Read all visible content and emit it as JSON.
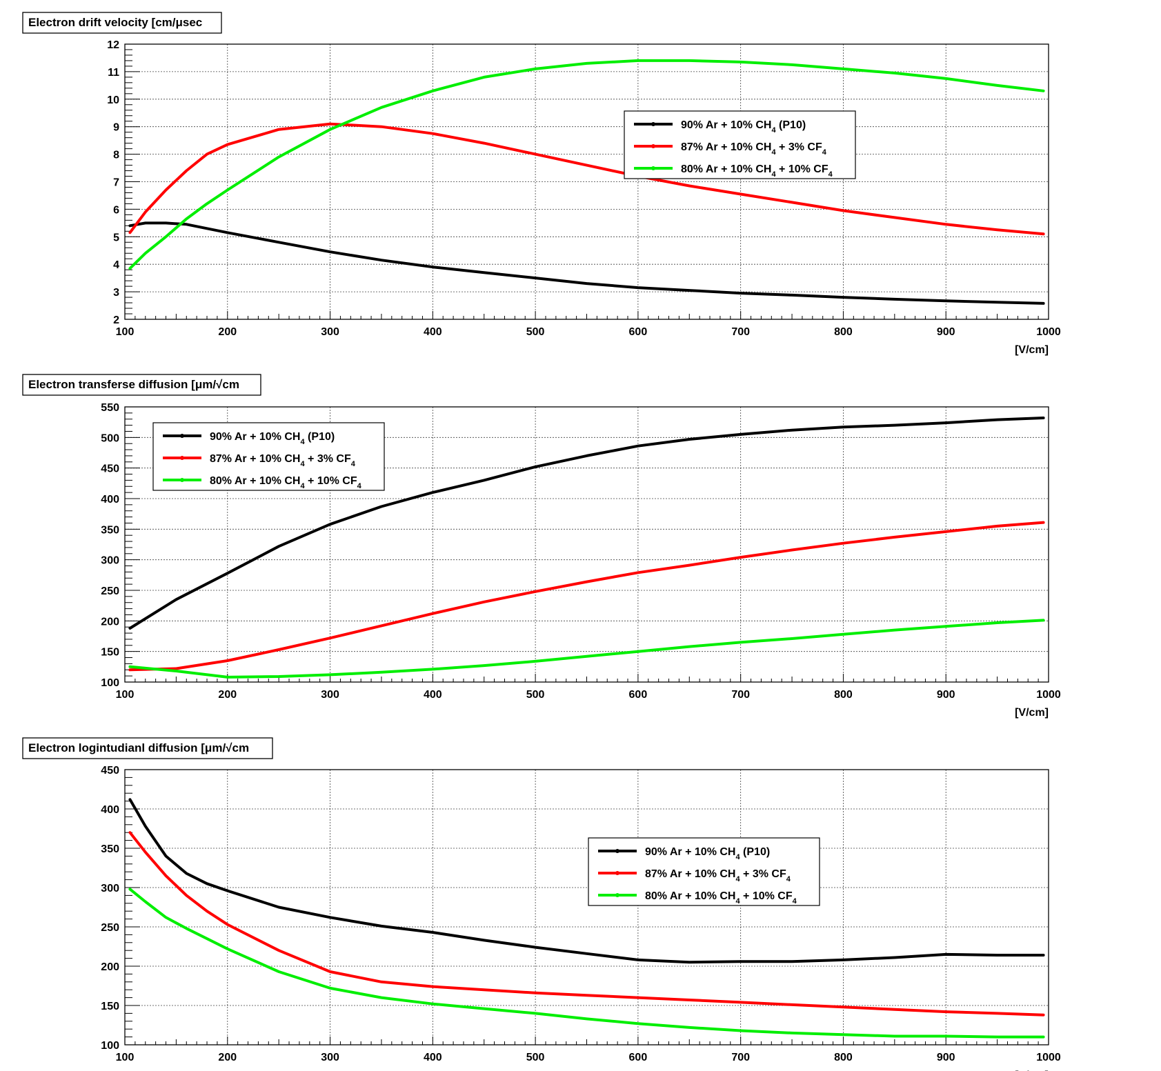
{
  "chart_data": [
    {
      "type": "line",
      "title": "Electron drift velocity [cm/μsec",
      "xlabel": "[V/cm]",
      "ylabel": "",
      "xlim": [
        100,
        1000
      ],
      "ylim": [
        2,
        12
      ],
      "x_ticks": [
        100,
        200,
        300,
        400,
        500,
        600,
        700,
        800,
        900,
        1000
      ],
      "y_ticks": [
        2,
        3,
        4,
        5,
        6,
        7,
        8,
        9,
        10,
        11,
        12
      ],
      "y_minor_step": 0.2,
      "grid": true,
      "legend_position": "upper-right-center",
      "x": [
        105,
        120,
        140,
        160,
        180,
        200,
        250,
        300,
        350,
        400,
        450,
        500,
        550,
        600,
        650,
        700,
        750,
        800,
        850,
        900,
        950,
        995
      ],
      "series": [
        {
          "name": "90% Ar + 10% CH4 (P10)",
          "label_main": "90% Ar + 10% CH",
          "label_sub": "4",
          "label_tail": " (P10)",
          "color": "#000000",
          "values": [
            5.4,
            5.5,
            5.5,
            5.45,
            5.3,
            5.15,
            4.8,
            4.45,
            4.15,
            3.9,
            3.7,
            3.5,
            3.3,
            3.15,
            3.05,
            2.95,
            2.88,
            2.8,
            2.73,
            2.67,
            2.62,
            2.58
          ]
        },
        {
          "name": "87% Ar + 10% CH4 + 3% CF4",
          "label_main": "87% Ar + 10% CH",
          "label_sub": "4",
          "label_tail": " + 3% CF",
          "label_sub2": "4",
          "color": "#ff0000",
          "values": [
            5.15,
            5.9,
            6.7,
            7.4,
            8.0,
            8.35,
            8.9,
            9.1,
            9.0,
            8.75,
            8.4,
            8.0,
            7.6,
            7.2,
            6.85,
            6.55,
            6.25,
            5.95,
            5.7,
            5.45,
            5.25,
            5.1
          ]
        },
        {
          "name": "80% Ar + 10% CH4 + 10% CF4",
          "label_main": "80% Ar + 10% CH",
          "label_sub": "4",
          "label_tail": " + 10% CF",
          "label_sub2": "4",
          "color": "#00ee00",
          "values": [
            3.85,
            4.4,
            5.0,
            5.65,
            6.2,
            6.7,
            7.9,
            8.9,
            9.7,
            10.3,
            10.8,
            11.1,
            11.3,
            11.4,
            11.4,
            11.35,
            11.25,
            11.1,
            10.95,
            10.75,
            10.5,
            10.3
          ]
        }
      ]
    },
    {
      "type": "line",
      "title": "Electron transferse diffusion [μm/√cm",
      "xlabel": "[V/cm]",
      "ylabel": "",
      "xlim": [
        100,
        1000
      ],
      "ylim": [
        100,
        550
      ],
      "x_ticks": [
        100,
        200,
        300,
        400,
        500,
        600,
        700,
        800,
        900,
        1000
      ],
      "y_ticks": [
        100,
        150,
        200,
        250,
        300,
        350,
        400,
        450,
        500,
        550
      ],
      "y_minor_step": 10,
      "grid": true,
      "legend_position": "upper-left",
      "x": [
        105,
        150,
        200,
        250,
        300,
        350,
        400,
        450,
        500,
        550,
        600,
        650,
        700,
        750,
        800,
        850,
        900,
        950,
        995
      ],
      "series": [
        {
          "name": "90% Ar + 10% CH4 (P10)",
          "label_main": "90% Ar + 10% CH",
          "label_sub": "4",
          "label_tail": " (P10)",
          "color": "#000000",
          "values": [
            188,
            235,
            278,
            322,
            358,
            387,
            410,
            430,
            452,
            470,
            486,
            497,
            505,
            512,
            517,
            520,
            524,
            529,
            532
          ]
        },
        {
          "name": "87% Ar + 10% CH4 + 3% CF4",
          "label_main": "87% Ar + 10% CH",
          "label_sub": "4",
          "label_tail": " + 3% CF",
          "label_sub2": "4",
          "color": "#ff0000",
          "values": [
            120,
            122,
            135,
            153,
            172,
            192,
            212,
            231,
            248,
            264,
            279,
            291,
            304,
            316,
            327,
            337,
            346,
            355,
            361
          ]
        },
        {
          "name": "80% Ar + 10% CH4 + 10% CF4",
          "label_main": "80% Ar + 10% CH",
          "label_sub": "4",
          "label_tail": " + 10% CF",
          "label_sub2": "4",
          "color": "#00ee00",
          "values": [
            125,
            118,
            108,
            109,
            112,
            116,
            121,
            127,
            134,
            142,
            150,
            158,
            165,
            171,
            178,
            185,
            191,
            197,
            201
          ]
        }
      ]
    },
    {
      "type": "line",
      "title": "Electron logintudianl  diffusion [μm/√cm",
      "xlabel": "[V/cm]",
      "ylabel": "",
      "xlim": [
        100,
        1000
      ],
      "ylim": [
        100,
        450
      ],
      "x_ticks": [
        100,
        200,
        300,
        400,
        500,
        600,
        700,
        800,
        900,
        1000
      ],
      "y_ticks": [
        100,
        150,
        200,
        250,
        300,
        350,
        400,
        450
      ],
      "y_minor_step": 10,
      "grid": true,
      "legend_position": "center-right",
      "x": [
        105,
        120,
        140,
        160,
        180,
        200,
        250,
        300,
        350,
        400,
        450,
        500,
        550,
        600,
        650,
        700,
        750,
        800,
        850,
        900,
        950,
        995
      ],
      "series": [
        {
          "name": "90% Ar + 10% CH4 (P10)",
          "label_main": "90% Ar + 10% CH",
          "label_sub": "4",
          "label_tail": " (P10)",
          "color": "#000000",
          "values": [
            412,
            378,
            340,
            318,
            305,
            296,
            275,
            262,
            251,
            243,
            233,
            224,
            216,
            208,
            205,
            206,
            206,
            208,
            211,
            215,
            214,
            214
          ]
        },
        {
          "name": "87% Ar + 10% CH4 + 3% CF4",
          "label_main": "87% Ar + 10% CH",
          "label_sub": "4",
          "label_tail": " + 3% CF",
          "label_sub2": "4",
          "color": "#ff0000",
          "values": [
            370,
            345,
            315,
            290,
            270,
            253,
            220,
            193,
            180,
            174,
            170,
            166,
            163,
            160,
            157,
            154,
            151,
            148,
            145,
            142,
            140,
            138
          ]
        },
        {
          "name": "80% Ar + 10% CH4 + 10% CF4",
          "label_main": "80% Ar + 10% CH",
          "label_sub": "4",
          "label_tail": " + 10% CF",
          "label_sub2": "4",
          "color": "#00ee00",
          "values": [
            298,
            282,
            262,
            248,
            235,
            222,
            193,
            172,
            160,
            152,
            146,
            140,
            133,
            127,
            122,
            118,
            115,
            113,
            111,
            111,
            110,
            110
          ]
        }
      ]
    }
  ]
}
